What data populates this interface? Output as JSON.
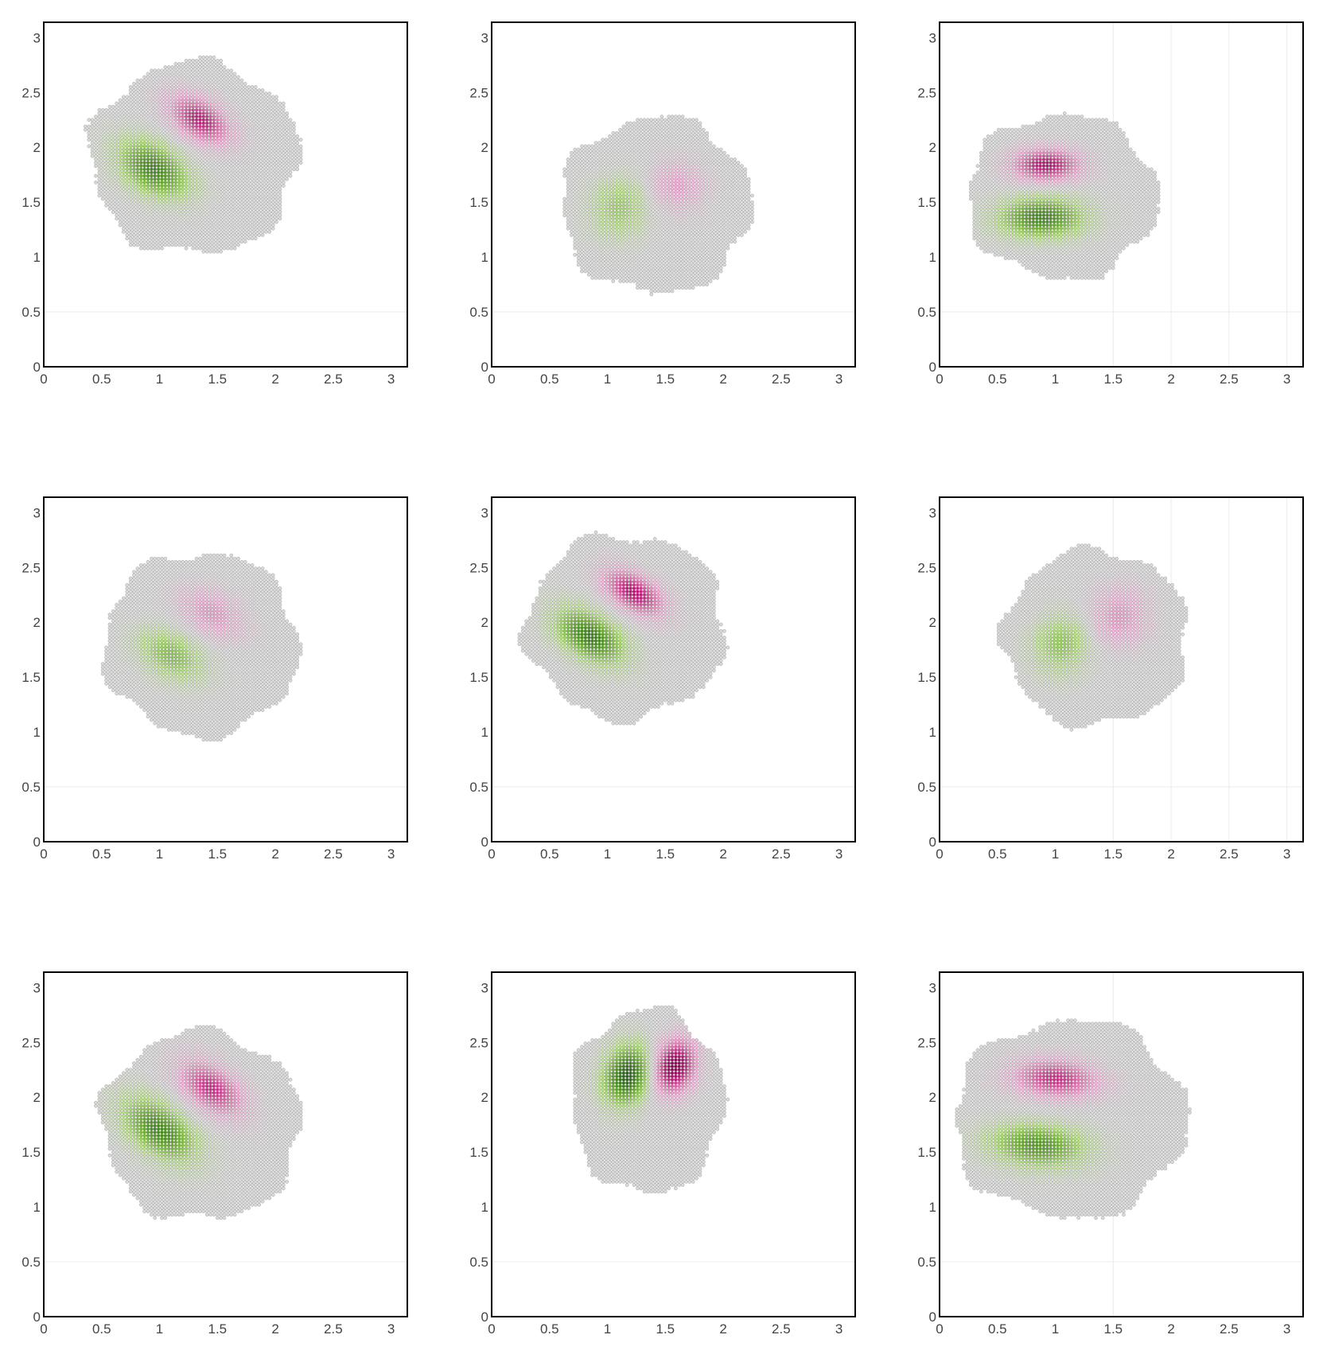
{
  "figure": {
    "colors": {
      "background": "#ffffff",
      "frame": "#000000",
      "gridline": "#ebebeb",
      "scatter_point": "#9a9a9a",
      "tick_label": "#444444",
      "positive_lobe": "#c51b7d",
      "negative_lobe": "#4d9221"
    },
    "colorscale": "PiYG"
  },
  "chart_data": [
    {
      "type": "scatter",
      "x_ticks": [
        "0",
        "0.5",
        "1",
        "1.5",
        "2",
        "2.5",
        "3"
      ],
      "y_ticks": [
        "0",
        "0.5",
        "1",
        "1.5",
        "2",
        "2.5",
        "3"
      ],
      "xlim": [
        0,
        3.14
      ],
      "ylim": [
        0,
        3.14
      ],
      "grid": "y=0.5 gridline visible",
      "region": {
        "cx": 1.3,
        "cy": 1.9,
        "rx": 0.9,
        "ry": 0.88
      },
      "lobes": [
        {
          "sign": -1,
          "x": 0.95,
          "y": 1.8,
          "sx": 0.22,
          "sy": 0.14,
          "angle_deg": -35,
          "strength": 0.8
        },
        {
          "sign": 1,
          "x": 1.35,
          "y": 2.25,
          "sx": 0.2,
          "sy": 0.12,
          "angle_deg": -35,
          "strength": 0.75
        }
      ]
    },
    {
      "type": "scatter",
      "x_ticks": [
        "0",
        "0.5",
        "1",
        "1.5",
        "2",
        "2.5",
        "3"
      ],
      "y_ticks": [
        "0",
        "0.5",
        "1",
        "1.5",
        "2",
        "2.5",
        "3"
      ],
      "xlim": [
        0,
        3.14
      ],
      "ylim": [
        0,
        3.14
      ],
      "grid": "y=0.5 gridline visible",
      "region": {
        "cx": 1.42,
        "cy": 1.47,
        "rx": 0.82,
        "ry": 0.8
      },
      "lobes": [
        {
          "sign": -1,
          "x": 1.1,
          "y": 1.45,
          "sx": 0.16,
          "sy": 0.18,
          "angle_deg": -20,
          "strength": 0.35
        },
        {
          "sign": 1,
          "x": 1.6,
          "y": 1.65,
          "sx": 0.16,
          "sy": 0.16,
          "angle_deg": -20,
          "strength": 0.3
        }
      ]
    },
    {
      "type": "scatter",
      "x_ticks": [
        "0",
        "0.5",
        "1",
        "1.5",
        "2",
        "2.5",
        "3"
      ],
      "y_ticks": [
        "0",
        "0.5",
        "1",
        "1.5",
        "2",
        "2.5",
        "3"
      ],
      "xlim": [
        0,
        3.14
      ],
      "ylim": [
        0,
        3.14
      ],
      "grid": "y=0.5 and x=1.5, 2, 2.5, 3 gridlines visible",
      "region": {
        "cx": 1.06,
        "cy": 1.55,
        "rx": 0.82,
        "ry": 0.75
      },
      "lobes": [
        {
          "sign": 1,
          "x": 0.92,
          "y": 1.84,
          "sx": 0.2,
          "sy": 0.1,
          "angle_deg": 0,
          "strength": 0.8
        },
        {
          "sign": -1,
          "x": 0.88,
          "y": 1.36,
          "sx": 0.24,
          "sy": 0.12,
          "angle_deg": 0,
          "strength": 0.8
        }
      ]
    },
    {
      "type": "scatter",
      "x_ticks": [
        "0",
        "0.5",
        "1",
        "1.5",
        "2",
        "2.5",
        "3"
      ],
      "y_ticks": [
        "0",
        "0.5",
        "1",
        "1.5",
        "2",
        "2.5",
        "3"
      ],
      "xlim": [
        0,
        3.14
      ],
      "ylim": [
        0,
        3.14
      ],
      "grid": "y=0.5 gridline visible",
      "region": {
        "cx": 1.36,
        "cy": 1.8,
        "rx": 0.84,
        "ry": 0.84
      },
      "lobes": [
        {
          "sign": -1,
          "x": 1.1,
          "y": 1.7,
          "sx": 0.2,
          "sy": 0.13,
          "angle_deg": -30,
          "strength": 0.45
        },
        {
          "sign": 1,
          "x": 1.45,
          "y": 2.08,
          "sx": 0.2,
          "sy": 0.13,
          "angle_deg": -30,
          "strength": 0.35
        }
      ]
    },
    {
      "type": "scatter",
      "x_ticks": [
        "0",
        "0.5",
        "1",
        "1.5",
        "2",
        "2.5",
        "3"
      ],
      "y_ticks": [
        "0",
        "0.5",
        "1",
        "1.5",
        "2",
        "2.5",
        "3"
      ],
      "xlim": [
        0,
        3.14
      ],
      "ylim": [
        0,
        3.14
      ],
      "grid": "y=0.5 gridline visible",
      "region": {
        "cx": 1.16,
        "cy": 1.96,
        "rx": 0.86,
        "ry": 0.84
      },
      "lobes": [
        {
          "sign": -1,
          "x": 0.85,
          "y": 1.87,
          "sx": 0.22,
          "sy": 0.13,
          "angle_deg": -35,
          "strength": 0.85
        },
        {
          "sign": 1,
          "x": 1.23,
          "y": 2.27,
          "sx": 0.2,
          "sy": 0.11,
          "angle_deg": -35,
          "strength": 0.8
        }
      ]
    },
    {
      "type": "scatter",
      "x_ticks": [
        "0",
        "0.5",
        "1",
        "1.5",
        "2",
        "2.5",
        "3"
      ],
      "y_ticks": [
        "0",
        "0.5",
        "1",
        "1.5",
        "2",
        "2.5",
        "3"
      ],
      "xlim": [
        0,
        3.14
      ],
      "ylim": [
        0,
        3.14
      ],
      "grid": "y=0.5 and x=1.5, 2, 2.5, 3 gridlines visible",
      "region": {
        "cx": 1.35,
        "cy": 1.86,
        "rx": 0.8,
        "ry": 0.8
      },
      "lobes": [
        {
          "sign": -1,
          "x": 1.05,
          "y": 1.8,
          "sx": 0.16,
          "sy": 0.18,
          "angle_deg": -20,
          "strength": 0.4
        },
        {
          "sign": 1,
          "x": 1.55,
          "y": 2.05,
          "sx": 0.17,
          "sy": 0.18,
          "angle_deg": -20,
          "strength": 0.35
        }
      ]
    },
    {
      "type": "scatter",
      "x_ticks": [
        "0",
        "0.5",
        "1",
        "1.5",
        "2",
        "2.5",
        "3"
      ],
      "y_ticks": [
        "0",
        "0.5",
        "1",
        "1.5",
        "2",
        "2.5",
        "3"
      ],
      "xlim": [
        0,
        3.14
      ],
      "ylim": [
        0,
        3.14
      ],
      "grid": "y=0.5 gridline visible",
      "region": {
        "cx": 1.36,
        "cy": 1.74,
        "rx": 0.86,
        "ry": 0.86
      },
      "lobes": [
        {
          "sign": -1,
          "x": 1.0,
          "y": 1.7,
          "sx": 0.24,
          "sy": 0.14,
          "angle_deg": -40,
          "strength": 0.8
        },
        {
          "sign": 1,
          "x": 1.45,
          "y": 2.08,
          "sx": 0.22,
          "sy": 0.13,
          "angle_deg": -40,
          "strength": 0.7
        }
      ]
    },
    {
      "type": "scatter",
      "x_ticks": [
        "0",
        "0.5",
        "1",
        "1.5",
        "2",
        "2.5",
        "3"
      ],
      "y_ticks": [
        "0",
        "0.5",
        "1",
        "1.5",
        "2",
        "2.5",
        "3"
      ],
      "xlim": [
        0,
        3.14
      ],
      "ylim": [
        0,
        3.14
      ],
      "grid": "y=0.5 gridline visible",
      "region": {
        "cx": 1.35,
        "cy": 1.96,
        "rx": 0.66,
        "ry": 0.84
      },
      "lobes": [
        {
          "sign": -1,
          "x": 1.17,
          "y": 2.2,
          "sx": 0.13,
          "sy": 0.18,
          "angle_deg": -15,
          "strength": 1.0
        },
        {
          "sign": 1,
          "x": 1.58,
          "y": 2.28,
          "sx": 0.12,
          "sy": 0.17,
          "angle_deg": -15,
          "strength": 1.0
        }
      ]
    },
    {
      "type": "scatter",
      "x_ticks": [
        "0",
        "0.5",
        "1",
        "1.5",
        "2",
        "2.5",
        "3"
      ],
      "y_ticks": [
        "0",
        "0.5",
        "1",
        "1.5",
        "2",
        "2.5",
        "3"
      ],
      "xlim": [
        0,
        3.14
      ],
      "ylim": [
        0,
        3.14
      ],
      "grid": "y=0.5 and x=1.5 gridlines visible",
      "region": {
        "cx": 1.13,
        "cy": 1.8,
        "rx": 1.0,
        "ry": 0.9
      },
      "lobes": [
        {
          "sign": 1,
          "x": 1.0,
          "y": 2.17,
          "sx": 0.25,
          "sy": 0.12,
          "angle_deg": -5,
          "strength": 0.7
        },
        {
          "sign": -1,
          "x": 0.85,
          "y": 1.56,
          "sx": 0.27,
          "sy": 0.13,
          "angle_deg": -5,
          "strength": 0.7
        }
      ]
    }
  ]
}
